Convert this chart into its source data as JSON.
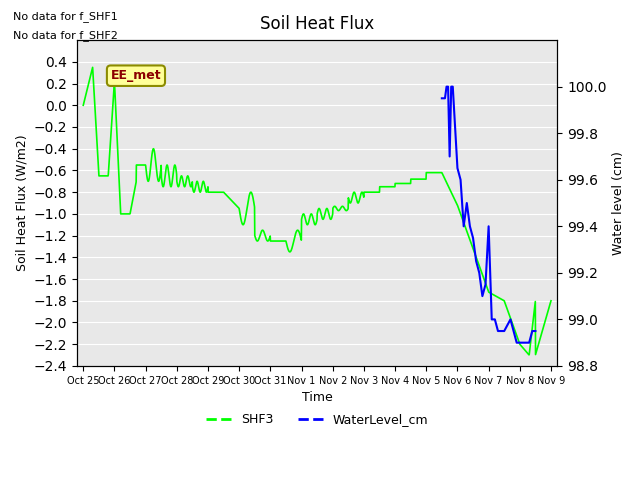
{
  "title": "Soil Heat Flux",
  "ylabel_left": "Soil Heat Flux (W/m2)",
  "ylabel_right": "Water level (cm)",
  "xlabel": "Time",
  "ylim_left": [
    -2.4,
    0.6
  ],
  "ylim_right": [
    98.8,
    100.2
  ],
  "yticks_left": [
    0.4,
    0.2,
    0.0,
    -0.2,
    -0.4,
    -0.6,
    -0.8,
    -1.0,
    -1.2,
    -1.4,
    -1.6,
    -1.8,
    -2.0,
    -2.2,
    -2.4
  ],
  "yticks_right": [
    98.8,
    99.0,
    99.2,
    99.4,
    99.6,
    99.8,
    100.0
  ],
  "annotation_text1": "No data for f_SHF1",
  "annotation_text2": "No data for f_SHF2",
  "box_label": "EE_met",
  "box_color": "#ffff99",
  "box_border_color": "#8B8B00",
  "box_text_color": "#8B0000",
  "line_color_shf3": "#00ff00",
  "line_color_water": "#0000ff",
  "bg_color": "#e8e8e8",
  "legend_labels": [
    "SHF3",
    "WaterLevel_cm"
  ],
  "xtick_labels": [
    "Oct 25",
    "Oct 26",
    "Oct 27",
    "Oct 28",
    "Oct 29",
    "Oct 30",
    "Oct 31",
    "Nov 1",
    "Nov 2",
    "Nov 3",
    "Nov 4",
    "Nov 5",
    "Nov 6",
    "Nov 7",
    "Nov 8",
    "Nov 9"
  ]
}
